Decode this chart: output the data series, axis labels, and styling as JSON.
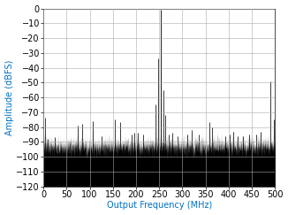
{
  "title": "",
  "xlabel": "Output Frequency (MHz)",
  "ylabel": "Amplitude (dBFS)",
  "xlim": [
    0,
    500
  ],
  "ylim": [
    -120,
    0
  ],
  "yticks": [
    0,
    -10,
    -20,
    -30,
    -40,
    -50,
    -60,
    -70,
    -80,
    -90,
    -100,
    -110,
    -120
  ],
  "xticks": [
    0,
    50,
    100,
    150,
    200,
    250,
    300,
    350,
    400,
    450,
    500
  ],
  "noise_floor": -93,
  "noise_std": 3.5,
  "fs": 1000,
  "nfft": 8192,
  "fundamental_freq": 253,
  "fundamental_amp": -1,
  "spurs": [
    {
      "freq": 247,
      "amp": -34
    },
    {
      "freq": 259,
      "amp": -55
    },
    {
      "freq": 243,
      "amp": -65
    },
    {
      "freq": 263,
      "amp": -72
    },
    {
      "freq": 3,
      "amp": -74
    },
    {
      "freq": 10,
      "amp": -88
    },
    {
      "freq": 25,
      "amp": -87
    },
    {
      "freq": 75,
      "amp": -79
    },
    {
      "freq": 83,
      "amp": -78
    },
    {
      "freq": 107,
      "amp": -76
    },
    {
      "freq": 125,
      "amp": -86
    },
    {
      "freq": 155,
      "amp": -75
    },
    {
      "freq": 165,
      "amp": -77
    },
    {
      "freq": 190,
      "amp": -85
    },
    {
      "freq": 197,
      "amp": -84
    },
    {
      "freq": 203,
      "amp": -84
    },
    {
      "freq": 215,
      "amp": -85
    },
    {
      "freq": 270,
      "amp": -85
    },
    {
      "freq": 278,
      "amp": -84
    },
    {
      "freq": 290,
      "amp": -86
    },
    {
      "freq": 310,
      "amp": -85
    },
    {
      "freq": 320,
      "amp": -82
    },
    {
      "freq": 335,
      "amp": -85
    },
    {
      "freq": 358,
      "amp": -77
    },
    {
      "freq": 365,
      "amp": -80
    },
    {
      "freq": 393,
      "amp": -86
    },
    {
      "freq": 403,
      "amp": -85
    },
    {
      "freq": 410,
      "amp": -83
    },
    {
      "freq": 420,
      "amp": -86
    },
    {
      "freq": 430,
      "amp": -86
    },
    {
      "freq": 445,
      "amp": -85
    },
    {
      "freq": 460,
      "amp": -85
    },
    {
      "freq": 470,
      "amp": -83
    },
    {
      "freq": 490,
      "amp": -49
    },
    {
      "freq": 497,
      "amp": -75
    }
  ],
  "bar_color": "#000000",
  "bg_color": "#ffffff",
  "grid_color": "#aaaaaa",
  "label_color": "#0070c0",
  "tick_color": "#000000",
  "axis_fontsize": 7,
  "label_fontsize": 7
}
